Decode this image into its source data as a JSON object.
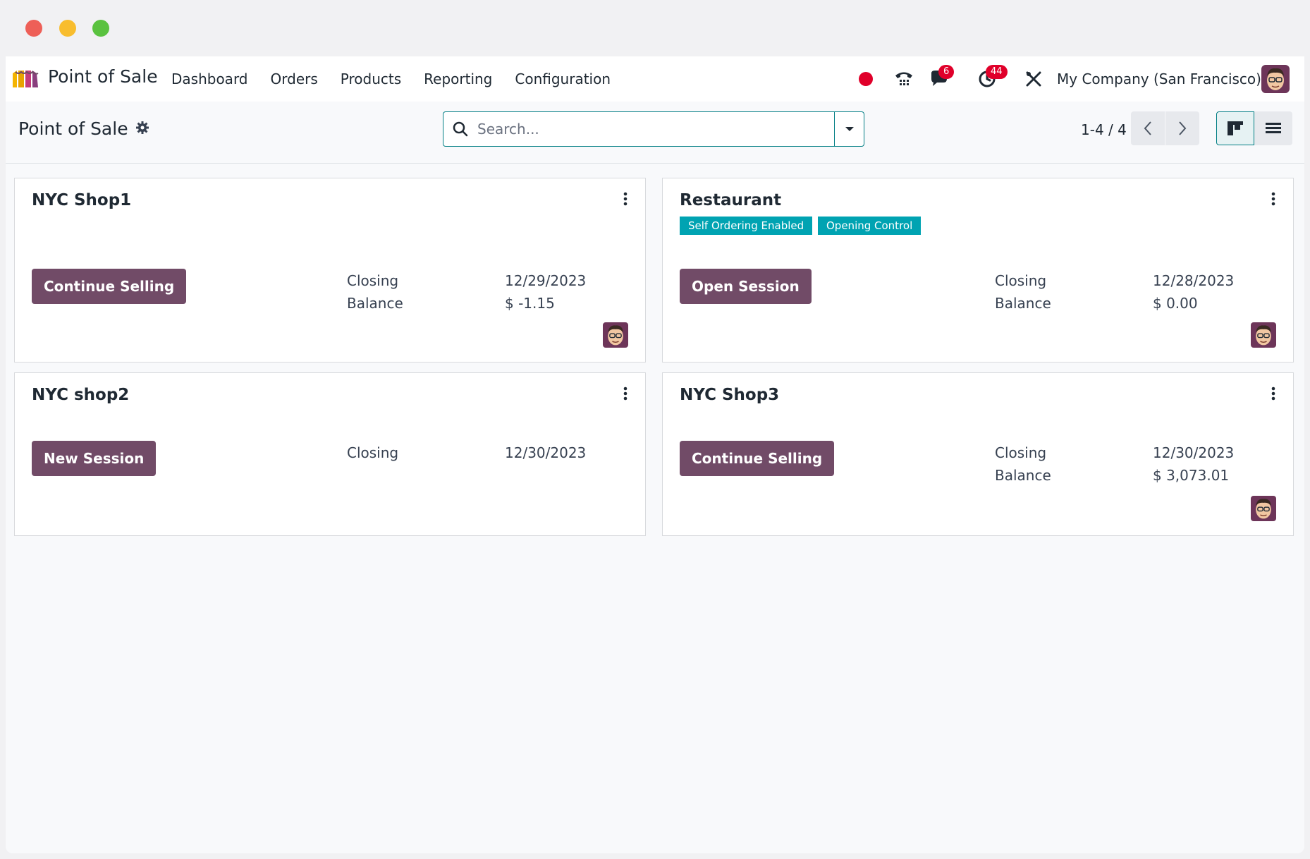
{
  "navbar": {
    "app_name": "Point of Sale",
    "menu": [
      "Dashboard",
      "Orders",
      "Products",
      "Reporting",
      "Configuration"
    ],
    "messages_count": "6",
    "activities_count": "44",
    "company": "My Company (San Francisco)"
  },
  "control_panel": {
    "breadcrumb": "Point of Sale",
    "search_placeholder": "Search...",
    "pager": "1-4 / 4"
  },
  "cards": [
    {
      "title": "NYC Shop1",
      "tags": [],
      "action": "Continue Selling",
      "closing_label": "Closing",
      "closing_value": "12/29/2023",
      "balance_label": "Balance",
      "balance_value": "$ -1.15"
    },
    {
      "title": "Restaurant",
      "tags": [
        "Self Ordering Enabled",
        "Opening Control"
      ],
      "action": "Open Session",
      "closing_label": "Closing",
      "closing_value": "12/28/2023",
      "balance_label": "Balance",
      "balance_value": "$ 0.00"
    },
    {
      "title": "NYC shop2",
      "tags": [],
      "action": "New Session",
      "closing_label": "Closing",
      "closing_value": "12/30/2023"
    },
    {
      "title": "NYC Shop3",
      "tags": [],
      "action": "Continue Selling",
      "closing_label": "Closing",
      "closing_value": "12/30/2023",
      "balance_label": "Balance",
      "balance_value": "$ 3,073.01"
    }
  ],
  "colors": {
    "primary": "#714b67",
    "tag": "#00a3b2",
    "accent": "#017e84",
    "badge": "#e0002a"
  }
}
